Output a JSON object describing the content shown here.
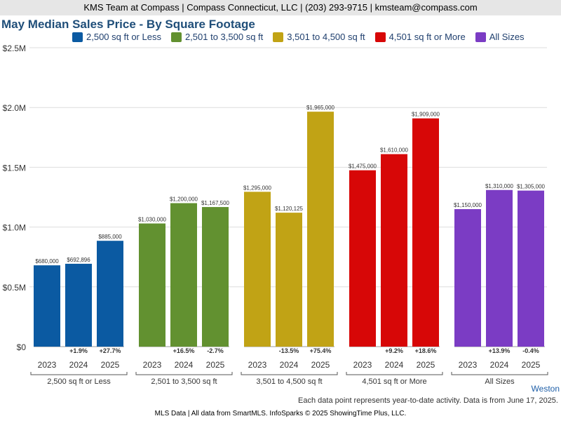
{
  "header": {
    "text": "KMS Team at Compass | Compass Connecticut, LLC | (203) 293-9715 | kmsteam@compass.com"
  },
  "chart_data": {
    "type": "bar",
    "title": "May Median Sales Price - By Square Footage",
    "ylim": [
      0,
      2500000
    ],
    "y_ticks": [
      0,
      500000,
      1000000,
      1500000,
      2000000,
      2500000
    ],
    "y_tick_labels": [
      "$0",
      "$0.5M",
      "$1.0M",
      "$1.5M",
      "$2.0M",
      "$2.5M"
    ],
    "grid": true,
    "legend_position": "top",
    "groups": [
      {
        "name": "2,500 sq ft or Less",
        "color": "#0b5aa2",
        "years": [
          "2023",
          "2024",
          "2025"
        ],
        "values": [
          680000,
          692896,
          885000
        ],
        "value_labels": [
          "$680,000",
          "$692,896",
          "$885,000"
        ],
        "changes": [
          "",
          "+1.9%",
          "+27.7%"
        ]
      },
      {
        "name": "2,501 to 3,500 sq ft",
        "color": "#629130",
        "years": [
          "2023",
          "2024",
          "2025"
        ],
        "values": [
          1030000,
          1200000,
          1167500
        ],
        "value_labels": [
          "$1,030,000",
          "$1,200,000",
          "$1,167,500"
        ],
        "changes": [
          "",
          "+16.5%",
          "-2.7%"
        ]
      },
      {
        "name": "3,501 to 4,500 sq ft",
        "color": "#c1a315",
        "years": [
          "2023",
          "2024",
          "2025"
        ],
        "values": [
          1295000,
          1120125,
          1965000
        ],
        "value_labels": [
          "$1,295,000",
          "$1,120,125",
          "$1,965,000"
        ],
        "changes": [
          "",
          "-13.5%",
          "+75.4%"
        ]
      },
      {
        "name": "4,501 sq ft or More",
        "color": "#d70707",
        "years": [
          "2023",
          "2024",
          "2025"
        ],
        "values": [
          1475000,
          1610000,
          1909000
        ],
        "value_labels": [
          "$1,475,000",
          "$1,610,000",
          "$1,909,000"
        ],
        "changes": [
          "",
          "+9.2%",
          "+18.6%"
        ]
      },
      {
        "name": "All Sizes",
        "color": "#7b3cc4",
        "years": [
          "2023",
          "2024",
          "2025"
        ],
        "values": [
          1150000,
          1310000,
          1305000
        ],
        "value_labels": [
          "$1,150,000",
          "$1,310,000",
          "$1,305,000"
        ],
        "changes": [
          "",
          "+13.9%",
          "-0.4%"
        ]
      }
    ]
  },
  "legend": [
    {
      "label": "2,500 sq ft or Less",
      "color": "#0b5aa2"
    },
    {
      "label": "2,501 to 3,500 sq ft",
      "color": "#629130"
    },
    {
      "label": "3,501 to 4,500 sq ft",
      "color": "#c1a315"
    },
    {
      "label": "4,501 sq ft or More",
      "color": "#d70707"
    },
    {
      "label": "All Sizes",
      "color": "#7b3cc4"
    }
  ],
  "location": "Weston",
  "footnote": "Each data point represents year-to-date activity. Data is from June 17, 2025.",
  "source": "MLS Data | All data from SmartMLS. InfoSparks © 2025 ShowingTime Plus, LLC."
}
